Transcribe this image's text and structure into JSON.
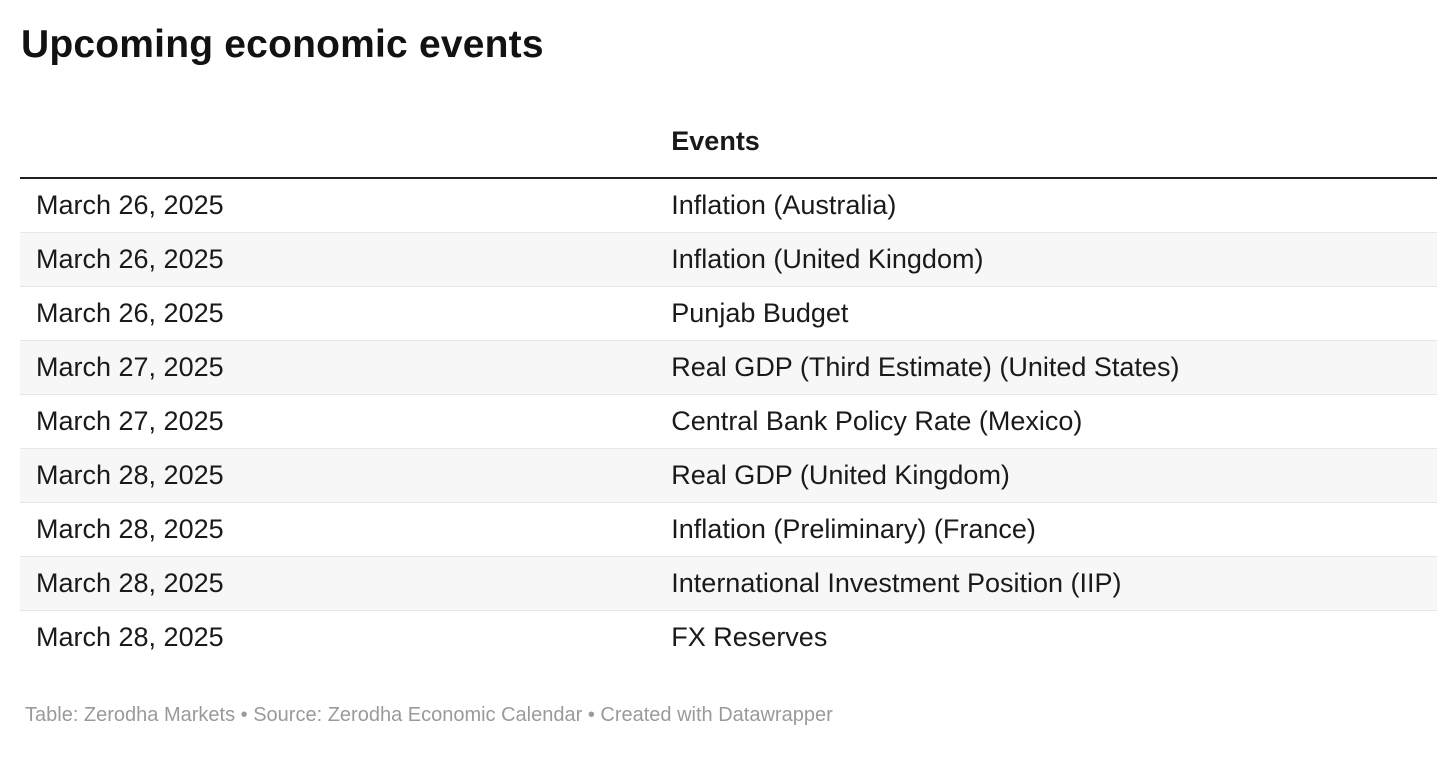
{
  "chart_data": {
    "type": "table",
    "title": "Upcoming economic events",
    "columns": [
      "",
      "Events"
    ],
    "rows": [
      [
        "March 26, 2025",
        "Inflation (Australia)"
      ],
      [
        "March 26, 2025",
        "Inflation (United Kingdom)"
      ],
      [
        "March 26, 2025",
        "Punjab Budget"
      ],
      [
        "March 27, 2025",
        "Real GDP (Third Estimate) (United States)"
      ],
      [
        "March 27, 2025",
        "Central Bank Policy Rate (Mexico)"
      ],
      [
        "March 28, 2025",
        "Real GDP (United Kingdom)"
      ],
      [
        "March 28, 2025",
        "Inflation (Preliminary) (France)"
      ],
      [
        "March 28, 2025",
        "International Investment Position (IIP)"
      ],
      [
        "March 28, 2025",
        "FX Reserves"
      ]
    ],
    "footnote": "Table: Zerodha Markets • Source: Zerodha Economic Calendar • Created with Datawrapper",
    "layout": {
      "zebra_striping": true,
      "grid": "horizontal-only"
    }
  },
  "colors": {
    "title_text": "#121212",
    "body_text": "#1a1a1a",
    "header_rule": "#1f1f1f",
    "row_separator": "#e6e6e6",
    "zebra_row_bg": "#f7f7f7",
    "footer_text": "#9a9a9a"
  }
}
